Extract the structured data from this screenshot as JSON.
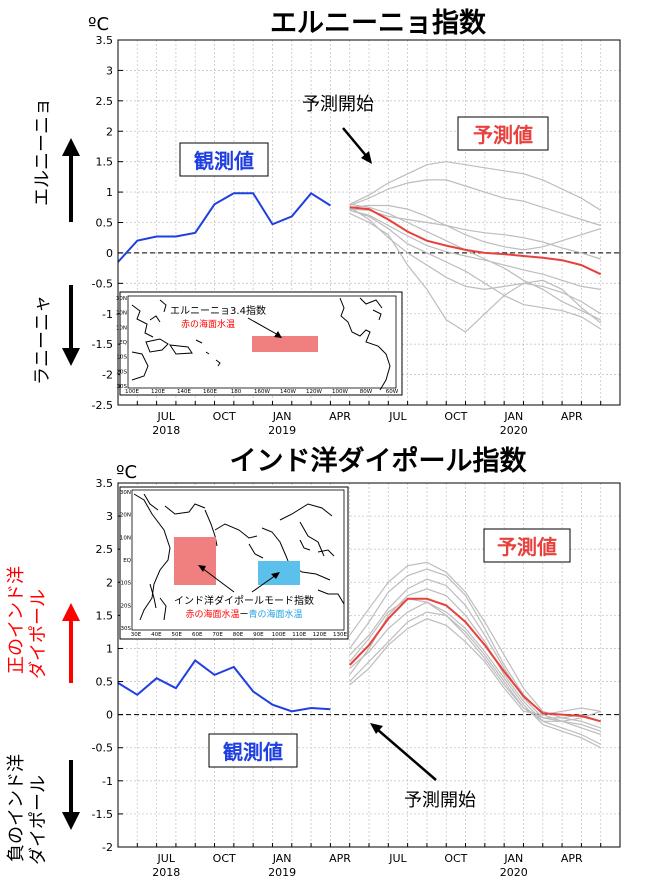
{
  "chart_data": [
    {
      "type": "line",
      "title": "エルニーニョ指数",
      "unit_label": "ºC",
      "ylim": [
        -2.5,
        3.5
      ],
      "y_ticks": [
        "3.5",
        "3",
        "2.5",
        "2",
        "1.5",
        "1",
        "0.5",
        "0",
        "-0.5",
        "-1",
        "-1.5",
        "-2",
        "-2.5"
      ],
      "x_range": [
        0,
        26
      ],
      "x_ticks": [
        {
          "x": 2.5,
          "label": "JUL",
          "year": "2018"
        },
        {
          "x": 5.5,
          "label": "OCT",
          "year": ""
        },
        {
          "x": 8.5,
          "label": "JAN",
          "year": "2019"
        },
        {
          "x": 11.5,
          "label": "APR",
          "year": ""
        },
        {
          "x": 14.5,
          "label": "JUL",
          "year": ""
        },
        {
          "x": 17.5,
          "label": "OCT",
          "year": ""
        },
        {
          "x": 20.5,
          "label": "JAN",
          "year": "2020"
        },
        {
          "x": 23.5,
          "label": "APR",
          "year": ""
        }
      ],
      "grid": true,
      "observed": {
        "name": "観測値",
        "x": [
          0,
          1,
          2,
          3,
          4,
          5,
          6,
          7,
          8,
          9,
          10,
          11
        ],
        "y": [
          -0.15,
          0.2,
          0.27,
          0.27,
          0.33,
          0.8,
          0.98,
          0.98,
          0.47,
          0.6,
          0.98,
          0.78
        ]
      },
      "forecast_mean": {
        "name": "予測値",
        "x": [
          12,
          13,
          14,
          15,
          16,
          17,
          18,
          19,
          20,
          21,
          22,
          23,
          24,
          25
        ],
        "y": [
          0.75,
          0.72,
          0.55,
          0.35,
          0.2,
          0.12,
          0.05,
          0.0,
          -0.02,
          -0.05,
          -0.08,
          -0.12,
          -0.2,
          -0.35
        ]
      },
      "forecast_members": [
        {
          "x": [
            12,
            13,
            14,
            15,
            16,
            17,
            18,
            19,
            20,
            21,
            22,
            23,
            24,
            25
          ],
          "y": [
            0.8,
            0.95,
            1.15,
            1.3,
            1.45,
            1.5,
            1.45,
            1.4,
            1.35,
            1.3,
            1.2,
            1.05,
            0.9,
            0.7
          ]
        },
        {
          "x": [
            12,
            13,
            14,
            15,
            16,
            17,
            18,
            19,
            20,
            21,
            22,
            23,
            24,
            25
          ],
          "y": [
            0.78,
            0.9,
            1.05,
            1.15,
            1.2,
            1.2,
            1.1,
            1.0,
            0.9,
            0.85,
            0.75,
            0.65,
            0.55,
            0.45
          ]
        },
        {
          "x": [
            12,
            13,
            14,
            15,
            16,
            17,
            18,
            19,
            20,
            21,
            22,
            23,
            24,
            25
          ],
          "y": [
            0.72,
            0.7,
            0.6,
            0.55,
            0.5,
            0.45,
            0.38,
            0.33,
            0.3,
            0.25,
            0.18,
            0.08,
            0.0,
            -0.1
          ]
        },
        {
          "x": [
            12,
            13,
            14,
            15,
            16,
            17,
            18,
            19,
            20,
            21,
            22,
            23,
            24,
            25
          ],
          "y": [
            0.7,
            0.62,
            0.45,
            0.28,
            0.12,
            0.02,
            -0.05,
            -0.12,
            -0.2,
            -0.28,
            -0.35,
            -0.45,
            -0.55,
            -0.6
          ]
        },
        {
          "x": [
            12,
            13,
            14,
            15,
            16,
            17,
            18,
            19,
            20,
            21,
            22,
            23,
            24,
            25
          ],
          "y": [
            0.75,
            0.55,
            0.25,
            0.0,
            -0.2,
            -0.4,
            -0.55,
            -0.6,
            -0.55,
            -0.5,
            -0.55,
            -0.65,
            -0.8,
            -1.0
          ]
        },
        {
          "x": [
            12,
            13,
            14,
            15,
            16,
            17,
            18,
            19,
            20,
            21,
            22,
            23,
            24,
            25
          ],
          "y": [
            0.65,
            0.5,
            0.3,
            -0.2,
            -0.6,
            -1.1,
            -1.3,
            -1.0,
            -0.7,
            -0.5,
            -0.45,
            -0.6,
            -0.9,
            -1.15
          ]
        },
        {
          "x": [
            12,
            13,
            14,
            15,
            16,
            17,
            18,
            19,
            20,
            21,
            22,
            23,
            24,
            25
          ],
          "y": [
            0.7,
            0.6,
            0.4,
            0.15,
            0.0,
            -0.15,
            -0.3,
            -0.5,
            -0.7,
            -0.85,
            -0.9,
            -0.95,
            -1.05,
            -1.25
          ]
        },
        {
          "x": [
            12,
            13,
            14,
            15,
            16,
            17,
            18,
            19,
            20,
            21,
            22,
            23,
            24,
            25
          ],
          "y": [
            0.8,
            0.75,
            0.65,
            0.5,
            0.35,
            0.2,
            0.05,
            -0.1,
            -0.25,
            -0.45,
            -0.6,
            -0.8,
            -0.95,
            -1.1
          ]
        },
        {
          "x": [
            12,
            13,
            14,
            15,
            16,
            17,
            18,
            19,
            20,
            21,
            22,
            23,
            24,
            25
          ],
          "y": [
            0.75,
            0.78,
            0.78,
            0.72,
            0.6,
            0.45,
            0.3,
            0.18,
            0.1,
            0.05,
            0.1,
            0.2,
            0.3,
            0.4
          ]
        }
      ]
    },
    {
      "type": "line",
      "title": "インド洋ダイポール指数",
      "unit_label": "ºC",
      "ylim": [
        -2,
        3.5
      ],
      "y_ticks": [
        "3.5",
        "3",
        "2.5",
        "2",
        "1.5",
        "1",
        "0.5",
        "0",
        "-0.5",
        "-1",
        "-1.5",
        "-2"
      ],
      "x_range": [
        0,
        26
      ],
      "x_ticks": [
        {
          "x": 2.5,
          "label": "JUL",
          "year": "2018"
        },
        {
          "x": 5.5,
          "label": "OCT",
          "year": ""
        },
        {
          "x": 8.5,
          "label": "JAN",
          "year": "2019"
        },
        {
          "x": 11.5,
          "label": "APR",
          "year": ""
        },
        {
          "x": 14.5,
          "label": "JUL",
          "year": ""
        },
        {
          "x": 17.5,
          "label": "OCT",
          "year": ""
        },
        {
          "x": 20.5,
          "label": "JAN",
          "year": "2020"
        },
        {
          "x": 23.5,
          "label": "APR",
          "year": ""
        }
      ],
      "grid": true,
      "observed": {
        "name": "観測値",
        "x": [
          0,
          1,
          2,
          3,
          4,
          5,
          6,
          7,
          8,
          9,
          10,
          11
        ],
        "y": [
          0.48,
          0.3,
          0.55,
          0.4,
          0.82,
          0.6,
          0.72,
          0.35,
          0.15,
          0.05,
          0.1,
          0.08
        ]
      },
      "forecast_mean": {
        "name": "予測値",
        "x": [
          12,
          13,
          14,
          15,
          16,
          17,
          18,
          19,
          20,
          21,
          22,
          23,
          24,
          25
        ],
        "y": [
          0.75,
          1.05,
          1.45,
          1.75,
          1.75,
          1.65,
          1.4,
          1.05,
          0.65,
          0.28,
          0.02,
          0.0,
          -0.02,
          -0.1
        ]
      },
      "forecast_members": [
        {
          "x": [
            12,
            13,
            14,
            15,
            16,
            17,
            18,
            19,
            20,
            21,
            22,
            23,
            24,
            25
          ],
          "y": [
            1.2,
            1.6,
            2.0,
            2.25,
            2.3,
            2.15,
            1.85,
            1.4,
            0.9,
            0.4,
            0.05,
            -0.05,
            -0.1,
            -0.2
          ]
        },
        {
          "x": [
            12,
            13,
            14,
            15,
            16,
            17,
            18,
            19,
            20,
            21,
            22,
            23,
            24,
            25
          ],
          "y": [
            1.0,
            1.4,
            1.85,
            2.1,
            2.2,
            2.1,
            1.8,
            1.3,
            0.75,
            0.3,
            0.0,
            -0.1,
            -0.15,
            -0.25
          ]
        },
        {
          "x": [
            12,
            13,
            14,
            15,
            16,
            17,
            18,
            19,
            20,
            21,
            22,
            23,
            24,
            25
          ],
          "y": [
            0.9,
            1.2,
            1.6,
            1.9,
            2.05,
            1.95,
            1.65,
            1.2,
            0.7,
            0.25,
            -0.05,
            -0.1,
            -0.2,
            -0.3
          ]
        },
        {
          "x": [
            12,
            13,
            14,
            15,
            16,
            17,
            18,
            19,
            20,
            21,
            22,
            23,
            24,
            25
          ],
          "y": [
            0.6,
            1.0,
            1.5,
            1.8,
            1.9,
            1.8,
            1.5,
            1.1,
            0.6,
            0.2,
            -0.1,
            -0.2,
            -0.3,
            -0.45
          ]
        },
        {
          "x": [
            12,
            13,
            14,
            15,
            16,
            17,
            18,
            19,
            20,
            21,
            22,
            23,
            24,
            25
          ],
          "y": [
            0.7,
            0.95,
            1.3,
            1.55,
            1.7,
            1.55,
            1.3,
            0.95,
            0.55,
            0.15,
            -0.15,
            -0.25,
            -0.35,
            -0.5
          ]
        },
        {
          "x": [
            12,
            13,
            14,
            15,
            16,
            17,
            18,
            19,
            20,
            21,
            22,
            23,
            24,
            25
          ],
          "y": [
            0.5,
            0.8,
            1.1,
            1.4,
            1.55,
            1.5,
            1.25,
            0.9,
            0.5,
            0.1,
            -0.1,
            -0.1,
            -0.05,
            0.05
          ]
        },
        {
          "x": [
            12,
            13,
            14,
            15,
            16,
            17,
            18,
            19,
            20,
            21,
            22,
            23,
            24,
            25
          ],
          "y": [
            0.45,
            0.7,
            1.05,
            1.3,
            1.45,
            1.35,
            1.1,
            0.8,
            0.4,
            0.05,
            0.0,
            0.05,
            0.1,
            0.05
          ]
        },
        {
          "x": [
            12,
            13,
            14,
            15,
            16,
            17,
            18,
            19,
            20,
            21,
            22,
            23,
            24,
            25
          ],
          "y": [
            0.8,
            1.15,
            1.55,
            1.75,
            1.7,
            1.5,
            1.2,
            0.85,
            0.45,
            0.1,
            -0.05,
            -0.05,
            0.0,
            -0.1
          ]
        }
      ]
    }
  ],
  "labels": {
    "el_nino_side": "エルニーニョ",
    "la_nina_side": "ラニーニャ",
    "forecast_start": "予測開始",
    "observed_box": "観測値",
    "forecast_box": "予測値",
    "pos_iod_line1": "正のインド洋",
    "pos_iod_line2": "ダイポール",
    "neg_iod_line1": "負のインド洋",
    "neg_iod_line2": "ダイポール"
  },
  "inset_top": {
    "title": "エルニーニョ3.4指数",
    "subtitle": "赤の海面水温",
    "lon_ticks": [
      "100E",
      "120E",
      "140E",
      "160E",
      "180",
      "160W",
      "140W",
      "120W",
      "100W",
      "80W",
      "60W"
    ],
    "lat_ticks": [
      "30N",
      "20N",
      "10N",
      "EQ",
      "10S",
      "20S",
      "30S"
    ]
  },
  "inset_bottom": {
    "title": "インド洋ダイポールモード指数",
    "red_term": "赤の海面水温",
    "minus": "ー",
    "blue_term": "青の海面水温",
    "lon_ticks": [
      "30E",
      "40E",
      "50E",
      "60E",
      "70E",
      "80E",
      "90E",
      "100E",
      "110E",
      "120E",
      "130E"
    ],
    "lat_ticks": [
      "30N",
      "20N",
      "10N",
      "EQ",
      "10S",
      "20S",
      "30S"
    ]
  },
  "colors": {
    "observed": "#1f3fe0",
    "forecast_mean": "#e8413c",
    "forecast_member": "#bdbdbd",
    "pos_label": "#ff0000",
    "region_red": "#f08080",
    "region_blue": "#5bc0eb"
  }
}
